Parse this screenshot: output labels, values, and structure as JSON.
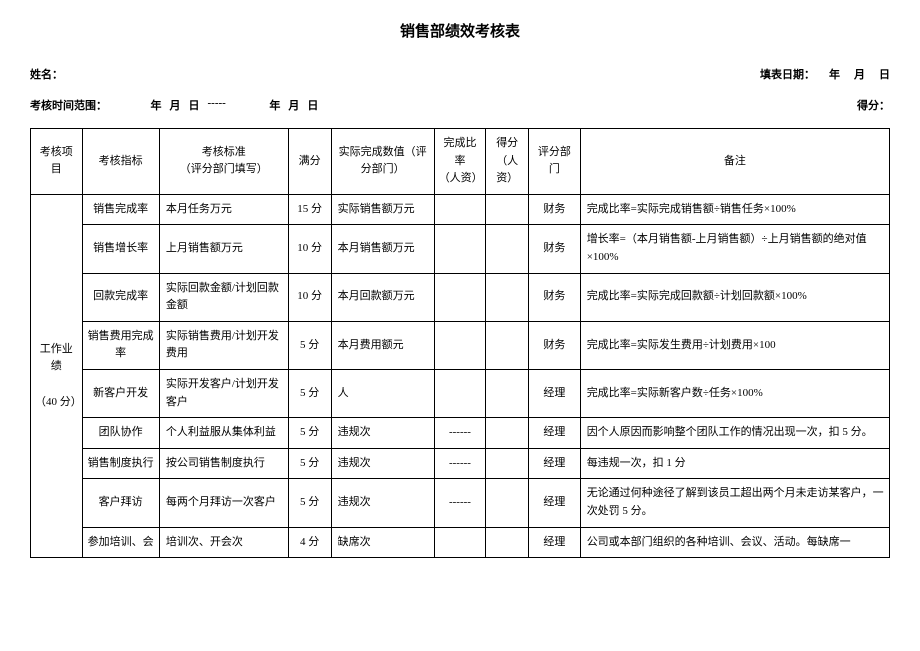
{
  "title": "销售部绩效考核表",
  "header": {
    "name_label": "姓名：",
    "fill_date_label": "填表日期：",
    "year": "年",
    "month": "月",
    "day": "日"
  },
  "header2": {
    "range_label": "考核时间范围：",
    "year": "年",
    "month": "月",
    "day": "日",
    "sep": "-----",
    "score_label": "得分：",
    "blank": "          "
  },
  "columns": {
    "c1": "考核项目",
    "c2": "考核指标",
    "c3a": "考核标准",
    "c3b": "（评分部门填写）",
    "c4": "满分",
    "c5": "实际完成数值（评分部门）",
    "c6a": "完成比率",
    "c6b": "（人资）",
    "c7a": "得分",
    "c7b": "（人资）",
    "c8": "评分部门",
    "c9": "备注"
  },
  "group1": {
    "name": "工作业绩",
    "score": "（40 分）"
  },
  "rows": [
    {
      "ind": "销售完成率",
      "std": "本月任务万元",
      "full": "15 分",
      "actual": "实际销售额万元",
      "rate": "",
      "score": "",
      "dept": "财务",
      "remark": "完成比率=实际完成销售额÷销售任务×100%"
    },
    {
      "ind": "销售增长率",
      "std": "上月销售额万元",
      "full": "10 分",
      "actual": "本月销售额万元",
      "rate": "",
      "score": "",
      "dept": "财务",
      "remark": "增长率=（本月销售额-上月销售额）÷上月销售额的绝对值×100%"
    },
    {
      "ind": "回款完成率",
      "std": "实际回款金额/计划回款金额",
      "full": "10 分",
      "actual": "本月回款额万元",
      "rate": "",
      "score": "",
      "dept": "财务",
      "remark": "完成比率=实际完成回款额÷计划回款额×100%"
    },
    {
      "ind": "销售费用完成率",
      "std": "实际销售费用/计划开发费用",
      "full": "5 分",
      "actual": "本月费用额元",
      "rate": "",
      "score": "",
      "dept": "财务",
      "remark": "完成比率=实际发生费用÷计划费用×100"
    },
    {
      "ind": "新客户开发",
      "std": "实际开发客户/计划开发客户",
      "full": "5 分",
      "actual": "人",
      "rate": "",
      "score": "",
      "dept": "经理",
      "remark": "完成比率=实际新客户数÷任务×100%"
    },
    {
      "ind": "团队协作",
      "std": "个人利益服从集体利益",
      "full": "5 分",
      "actual": "违规次",
      "rate": "------",
      "score": "",
      "dept": "经理",
      "remark": "因个人原因而影响整个团队工作的情况出现一次，扣 5 分。"
    },
    {
      "ind": "销售制度执行",
      "std": "按公司销售制度执行",
      "full": "5 分",
      "actual": "违规次",
      "rate": "------",
      "score": "",
      "dept": "经理",
      "remark": "每违规一次，扣 1 分"
    },
    {
      "ind": "客户拜访",
      "std": "每两个月拜访一次客户",
      "full": "5 分",
      "actual": "违规次",
      "rate": "------",
      "score": "",
      "dept": "经理",
      "remark": "无论通过何种途径了解到该员工超出两个月未走访某客户，一次处罚 5 分。"
    },
    {
      "ind": "参加培训、会",
      "std": "培训次、开会次",
      "full": "4 分",
      "actual": "缺席次",
      "rate": "",
      "score": "",
      "dept": "经理",
      "remark": "公司或本部门组织的各种培训、会议、活动。每缺席一"
    }
  ]
}
